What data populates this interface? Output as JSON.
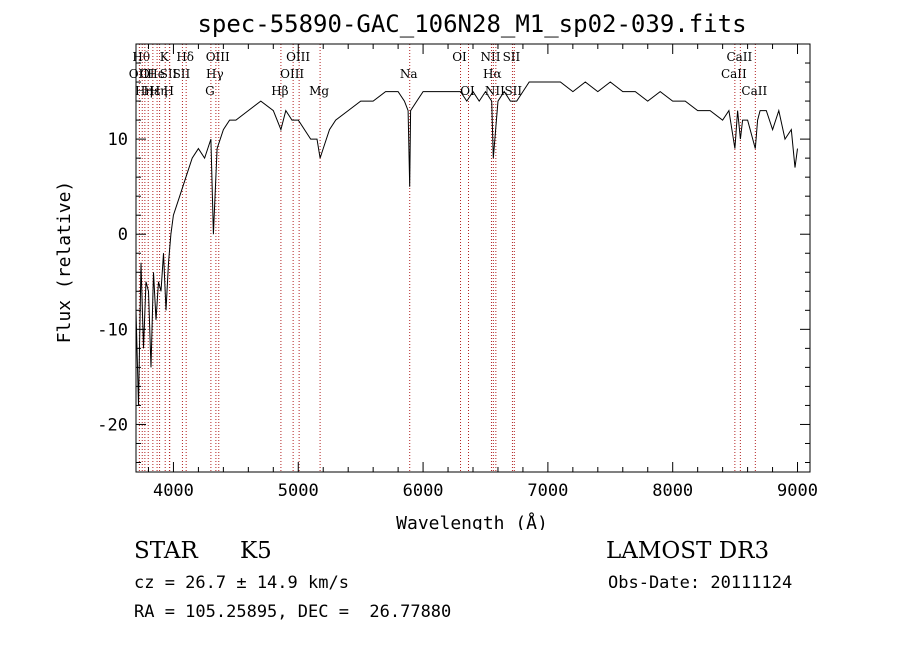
{
  "chart_data": {
    "type": "line",
    "title": "spec-55890-GAC_106N28_M1_sp02-039.fits",
    "xlabel": "Wavelength (Å)",
    "ylabel": "Flux (relative)",
    "xlim": [
      3700,
      9100
    ],
    "ylim": [
      -25,
      20
    ],
    "x_ticks": [
      4000,
      5000,
      6000,
      7000,
      8000,
      9000
    ],
    "y_ticks": [
      -20,
      -10,
      0,
      10
    ],
    "series": [
      {
        "name": "flux",
        "x": [
          3700,
          3720,
          3740,
          3760,
          3780,
          3800,
          3820,
          3840,
          3860,
          3880,
          3900,
          3920,
          3940,
          3960,
          3980,
          4000,
          4050,
          4100,
          4150,
          4200,
          4250,
          4300,
          4320,
          4350,
          4400,
          4450,
          4500,
          4600,
          4700,
          4800,
          4861,
          4900,
          4950,
          5000,
          5050,
          5100,
          5150,
          5175,
          5200,
          5250,
          5300,
          5400,
          5500,
          5600,
          5700,
          5800,
          5850,
          5880,
          5893,
          5900,
          5950,
          6000,
          6100,
          6200,
          6300,
          6350,
          6400,
          6450,
          6500,
          6550,
          6563,
          6600,
          6650,
          6700,
          6750,
          6800,
          6850,
          6900,
          7000,
          7100,
          7200,
          7300,
          7400,
          7500,
          7600,
          7700,
          7800,
          7900,
          8000,
          8100,
          8200,
          8300,
          8400,
          8450,
          8498,
          8520,
          8542,
          8560,
          8600,
          8662,
          8680,
          8700,
          8750,
          8800,
          8850,
          8900,
          8950,
          8980,
          9000
        ],
        "values": [
          -8,
          -18,
          -3,
          -12,
          -5,
          -6,
          -14,
          -4,
          -9,
          -5,
          -6,
          -2,
          -8,
          -3,
          0,
          2,
          4,
          6,
          8,
          9,
          8,
          10,
          0,
          9,
          11,
          12,
          12,
          13,
          14,
          13,
          11,
          13,
          12,
          12,
          11,
          10,
          10,
          8,
          9,
          11,
          12,
          13,
          14,
          14,
          15,
          15,
          14,
          13,
          5,
          13,
          14,
          15,
          15,
          15,
          15,
          14,
          15,
          14,
          15,
          14,
          8,
          14,
          15,
          14,
          14,
          15,
          16,
          16,
          16,
          16,
          15,
          16,
          15,
          16,
          15,
          15,
          14,
          15,
          14,
          14,
          13,
          13,
          12,
          13,
          9,
          13,
          10,
          12,
          12,
          9,
          12,
          13,
          13,
          11,
          13,
          10,
          11,
          7,
          9
        ]
      }
    ],
    "lines": [
      {
        "wavelength": 3727,
        "label": "OII",
        "row": 2
      },
      {
        "wavelength": 3750,
        "label": "Hθ",
        "row": 1
      },
      {
        "wavelength": 3771,
        "label": "Hη",
        "row": 3
      },
      {
        "wavelength": 3798,
        "label": "OI",
        "row": 2
      },
      {
        "wavelength": 3835,
        "label": "Hε",
        "row": 3
      },
      {
        "wavelength": 3869,
        "label": "He",
        "row": 2
      },
      {
        "wavelength": 3889,
        "label": "Hη",
        "row": 3
      },
      {
        "wavelength": 3934,
        "label": "K",
        "row": 1
      },
      {
        "wavelength": 3968,
        "label": "SII",
        "row": 2
      },
      {
        "wavelength": 3970,
        "label": "H",
        "row": 3
      },
      {
        "wavelength": 4102,
        "label": "Hδ",
        "row": 1
      },
      {
        "wavelength": 4072,
        "label": "SII",
        "row": 2
      },
      {
        "wavelength": 4300,
        "label": "G",
        "row": 3
      },
      {
        "wavelength": 4340,
        "label": "Hγ",
        "row": 2
      },
      {
        "wavelength": 4363,
        "label": "OIII",
        "row": 1
      },
      {
        "wavelength": 4861,
        "label": "Hβ",
        "row": 3
      },
      {
        "wavelength": 4959,
        "label": "OIII",
        "row": 2
      },
      {
        "wavelength": 5007,
        "label": "OIII",
        "row": 1
      },
      {
        "wavelength": 5175,
        "label": "Mg",
        "row": 3
      },
      {
        "wavelength": 5893,
        "label": "Na",
        "row": 2
      },
      {
        "wavelength": 6300,
        "label": "OI",
        "row": 1
      },
      {
        "wavelength": 6364,
        "label": "OI",
        "row": 3
      },
      {
        "wavelength": 6548,
        "label": "NII",
        "row": 1
      },
      {
        "wavelength": 6563,
        "label": "Hα",
        "row": 2
      },
      {
        "wavelength": 6583,
        "label": "NII",
        "row": 3
      },
      {
        "wavelength": 6716,
        "label": "SII",
        "row": 1
      },
      {
        "wavelength": 6731,
        "label": "SII",
        "row": 3
      },
      {
        "wavelength": 8498,
        "label": "CaII",
        "row": 2
      },
      {
        "wavelength": 8542,
        "label": "CaII",
        "row": 1
      },
      {
        "wavelength": 8662,
        "label": "CaII",
        "row": 3
      }
    ]
  },
  "info": {
    "object_class": "STAR",
    "subclass": "K5",
    "survey": "LAMOST DR3",
    "redshift": "cz = 26.7 ± 14.9 km/s",
    "obs_date": "Obs-Date: 20111124",
    "coords": "RA = 105.25895, DEC =  26.77880"
  },
  "colors": {
    "line": "#000000",
    "marker": "#b22222"
  }
}
